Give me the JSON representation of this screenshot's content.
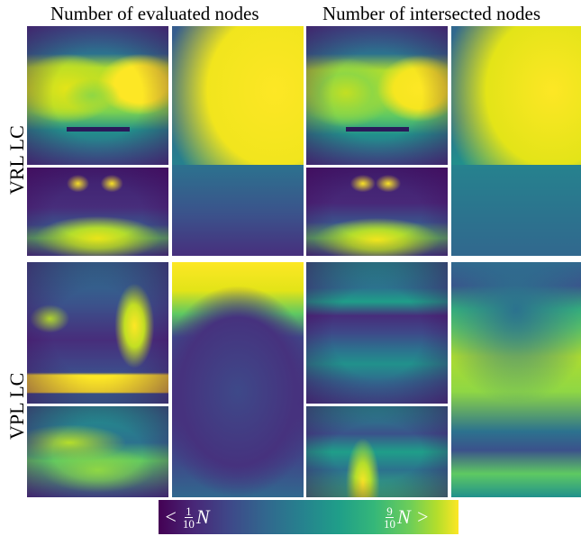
{
  "column_headers": [
    "Number of evaluated nodes",
    "Number of intersected nodes"
  ],
  "row_labels": [
    "VRL LC",
    "VPL LC"
  ],
  "colorbar": {
    "left_prefix": "<",
    "left_num": "1",
    "left_den": "10",
    "left_var": "N",
    "right_num": "9",
    "right_den": "10",
    "right_var": "N",
    "right_suffix": ">",
    "colormap": [
      "#440154",
      "#3e4989",
      "#26828e",
      "#35b779",
      "#fde725"
    ]
  }
}
